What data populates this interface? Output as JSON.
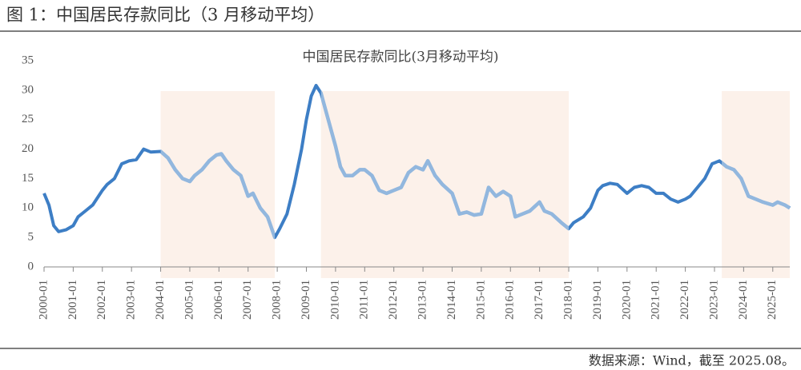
{
  "header": {
    "title": "图 1：中国居民存款同比（3 月移动平均）"
  },
  "footer": {
    "source": "数据来源：Wind，截至 2025.08。"
  },
  "chart_data": {
    "type": "line",
    "title": "中国居民存款同比(3月移动平均)",
    "x": [
      "2000-01",
      "2000-03",
      "2000-05",
      "2000-07",
      "2000-10",
      "2001-01",
      "2001-03",
      "2001-06",
      "2001-09",
      "2002-01",
      "2002-03",
      "2002-06",
      "2002-09",
      "2002-12",
      "2003-03",
      "2003-06",
      "2003-09",
      "2004-01",
      "2004-04",
      "2004-07",
      "2004-10",
      "2005-01",
      "2005-03",
      "2005-06",
      "2005-09",
      "2005-12",
      "2006-02",
      "2006-04",
      "2006-07",
      "2006-10",
      "2007-01",
      "2007-03",
      "2007-06",
      "2007-09",
      "2007-12",
      "2008-02",
      "2008-05",
      "2008-08",
      "2008-11",
      "2009-01",
      "2009-03",
      "2009-05",
      "2009-07",
      "2009-10",
      "2010-01",
      "2010-03",
      "2010-05",
      "2010-08",
      "2010-11",
      "2011-01",
      "2011-04",
      "2011-07",
      "2011-10",
      "2012-01",
      "2012-04",
      "2012-07",
      "2012-10",
      "2013-01",
      "2013-03",
      "2013-06",
      "2013-09",
      "2014-01",
      "2014-04",
      "2014-07",
      "2014-10",
      "2015-01",
      "2015-04",
      "2015-07",
      "2015-10",
      "2016-01",
      "2016-03",
      "2016-06",
      "2016-09",
      "2017-01",
      "2017-03",
      "2017-06",
      "2017-10",
      "2018-01",
      "2018-03",
      "2018-07",
      "2018-10",
      "2019-01",
      "2019-03",
      "2019-06",
      "2019-09",
      "2020-01",
      "2020-04",
      "2020-07",
      "2020-10",
      "2021-01",
      "2021-04",
      "2021-07",
      "2021-10",
      "2022-01",
      "2022-03",
      "2022-06",
      "2022-09",
      "2022-12",
      "2023-03",
      "2023-06",
      "2023-09",
      "2023-12",
      "2024-03",
      "2024-06",
      "2024-09",
      "2025-01",
      "2025-03",
      "2025-06",
      "2025-08"
    ],
    "values": [
      12.5,
      10.5,
      7,
      6,
      6.3,
      7,
      8.5,
      9.5,
      10.5,
      13,
      14,
      15,
      17.5,
      18,
      18.2,
      20,
      19.5,
      19.6,
      18.5,
      16.5,
      15,
      14.5,
      15.5,
      16.5,
      18,
      19,
      19.2,
      18,
      16.5,
      15.5,
      12,
      12.5,
      10,
      8.5,
      5,
      6.5,
      9,
      14,
      20,
      25,
      29,
      30.8,
      29.5,
      25,
      20.5,
      17,
      15.5,
      15.5,
      16.5,
      16.5,
      15.5,
      13,
      12.5,
      13,
      13.5,
      16,
      17,
      16.5,
      18,
      15.5,
      14,
      12.5,
      9,
      9.3,
      8.8,
      9,
      13.5,
      12,
      12.8,
      12,
      8.5,
      9,
      9.5,
      11,
      9.5,
      9,
      7.5,
      6.5,
      7.5,
      8.5,
      10,
      13,
      13.8,
      14.2,
      14,
      12.5,
      13.5,
      13.8,
      13.5,
      12.5,
      12.5,
      11.5,
      11,
      11.5,
      12,
      13.5,
      15,
      17.5,
      18,
      17,
      16.5,
      15,
      12,
      11.5,
      11,
      10.5,
      11,
      10.5,
      10
    ],
    "color": "#3d7ec5",
    "highlight_color": "#92b7de",
    "shaded_ranges": [
      [
        "2004-01",
        "2007-12"
      ],
      [
        "2009-07",
        "2018-01"
      ],
      [
        "2023-04",
        "2025-08"
      ]
    ],
    "shade_color": "#fcf1ea",
    "ylim": [
      0,
      35
    ],
    "yticks": [
      0,
      5,
      10,
      15,
      20,
      25,
      30,
      35
    ],
    "xlim": [
      "2000-01",
      "2025-08"
    ],
    "xticks": [
      "2000-01",
      "2001-01",
      "2002-01",
      "2003-01",
      "2004-01",
      "2005-01",
      "2006-01",
      "2007-01",
      "2008-01",
      "2009-01",
      "2010-01",
      "2011-01",
      "2012-01",
      "2013-01",
      "2014-01",
      "2015-01",
      "2016-01",
      "2017-01",
      "2018-01",
      "2019-01",
      "2020-01",
      "2021-01",
      "2022-01",
      "2023-01",
      "2024-01",
      "2025-01"
    ]
  }
}
